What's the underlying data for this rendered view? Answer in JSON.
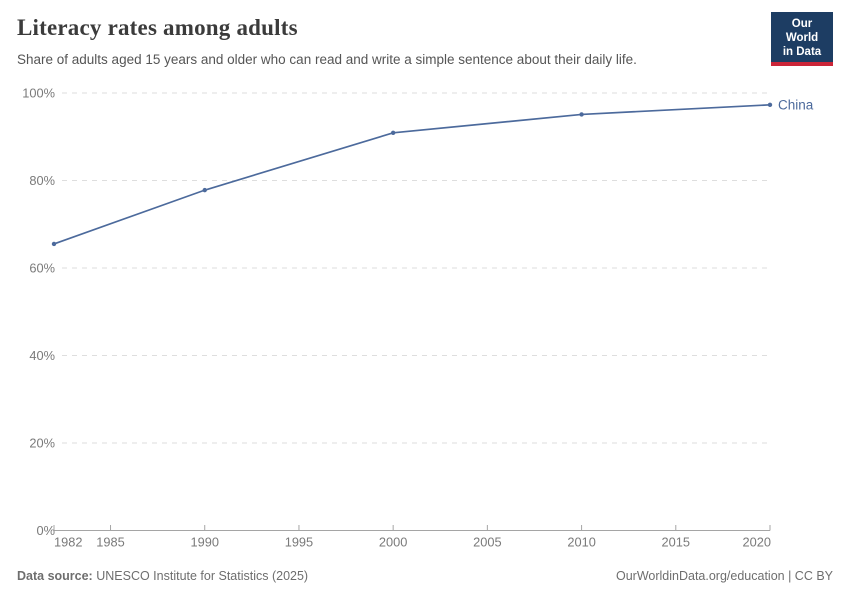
{
  "header": {
    "title": "Literacy rates among adults",
    "subtitle": "Share of adults aged 15 years and older who can read and write a simple sentence about their daily life.",
    "logo": {
      "line1": "Our World",
      "line2": "in Data"
    }
  },
  "chart_data": {
    "type": "line",
    "title": "Literacy rates among adults",
    "xlabel": "",
    "ylabel": "",
    "xlim": [
      1982,
      2020
    ],
    "ylim": [
      0,
      100
    ],
    "grid": "horizontal-dashed",
    "legend_position": "end-of-line-label",
    "x_ticks": [
      {
        "value": 1982,
        "label": "1982"
      },
      {
        "value": 1985,
        "label": "1985"
      },
      {
        "value": 1990,
        "label": "1990"
      },
      {
        "value": 1995,
        "label": "1995"
      },
      {
        "value": 2000,
        "label": "2000"
      },
      {
        "value": 2005,
        "label": "2005"
      },
      {
        "value": 2010,
        "label": "2010"
      },
      {
        "value": 2015,
        "label": "2015"
      },
      {
        "value": 2020,
        "label": "2020"
      }
    ],
    "y_ticks": [
      {
        "value": 0,
        "label": "0%"
      },
      {
        "value": 20,
        "label": "20%"
      },
      {
        "value": 40,
        "label": "40%"
      },
      {
        "value": 60,
        "label": "60%"
      },
      {
        "value": 80,
        "label": "80%"
      },
      {
        "value": 100,
        "label": "100%"
      }
    ],
    "series": [
      {
        "name": "China",
        "color": "#4C6A9C",
        "points": [
          {
            "year": 1982,
            "value": 65.5
          },
          {
            "year": 1990,
            "value": 77.8
          },
          {
            "year": 2000,
            "value": 90.9
          },
          {
            "year": 2010,
            "value": 95.1
          },
          {
            "year": 2020,
            "value": 97.3
          }
        ]
      }
    ]
  },
  "footer": {
    "source_label": "Data source:",
    "source_value": "UNESCO Institute for Statistics (2025)",
    "credit": "OurWorldinData.org/education | CC BY"
  },
  "colors": {
    "line": "#4C6A9C",
    "logo_bg": "#1d3d63",
    "logo_red": "#cb2538",
    "grid": "#dedede",
    "axis": "#a5a5a5",
    "tick_text": "#7a7a7a",
    "title_text": "#3b3b3b",
    "subtitle_text": "#555555",
    "footer_text": "#6e6e6e"
  }
}
